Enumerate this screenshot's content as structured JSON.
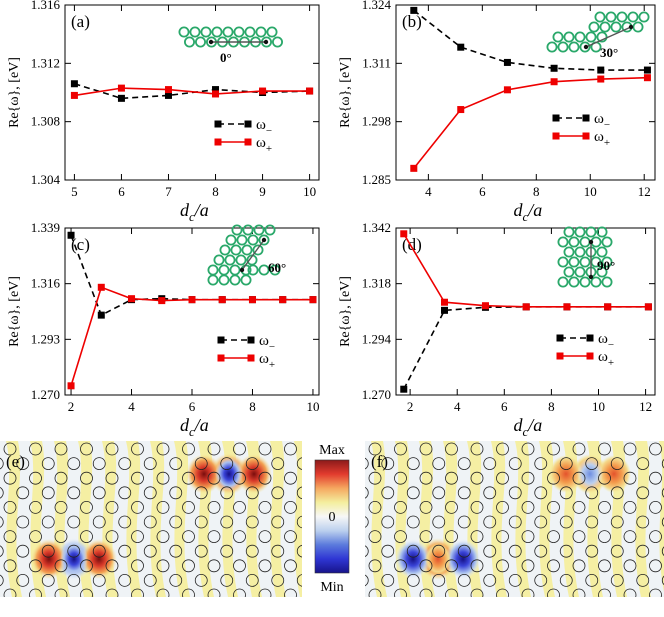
{
  "colors": {
    "minus": "#000000",
    "plus": "#ee0000",
    "ring": "#2aa86a",
    "field_yellow": "#f4ee9e",
    "field_light": "#eff3f6"
  },
  "legend": {
    "minus_symbol": "ω",
    "minus_sub": "−",
    "plus_symbol": "ω",
    "plus_sub": "+"
  },
  "chart_data": [
    {
      "id": "a",
      "panel_label": "(a)",
      "type": "line",
      "xlabel_main": "d",
      "xlabel_sub": "c",
      "xlabel_tail": "/a",
      "ylabel": "Re{ω}, [eV]",
      "xlim": [
        4.8,
        10.2
      ],
      "ylim": [
        1.304,
        1.316
      ],
      "xticks": [
        5,
        6,
        7,
        8,
        9,
        10
      ],
      "yticks": [
        1.304,
        1.308,
        1.312,
        1.316
      ],
      "y_precision": 3,
      "angle_label": "0°",
      "series": [
        {
          "name": "ω−",
          "style": "dashed-black",
          "x": [
            5,
            6,
            7,
            8,
            9,
            10
          ],
          "y": [
            1.3106,
            1.3096,
            1.3098,
            1.3102,
            1.31,
            1.3101
          ]
        },
        {
          "name": "ω+",
          "style": "solid-red",
          "x": [
            5,
            6,
            7,
            8,
            9,
            10
          ],
          "y": [
            1.3098,
            1.3103,
            1.3102,
            1.3099,
            1.3101,
            1.3101
          ]
        }
      ]
    },
    {
      "id": "b",
      "panel_label": "(b)",
      "type": "line",
      "xlabel_main": "d",
      "xlabel_sub": "c",
      "xlabel_tail": "/a",
      "ylabel": "Re{ω}, [eV]",
      "xlim": [
        2.8,
        12.4
      ],
      "ylim": [
        1.285,
        1.324
      ],
      "xticks": [
        4,
        6,
        8,
        10,
        12
      ],
      "yticks": [
        1.285,
        1.298,
        1.311,
        1.324
      ],
      "y_precision": 3,
      "angle_label": "30°",
      "series": [
        {
          "name": "ω−",
          "style": "dashed-black",
          "x": [
            3.46,
            5.2,
            6.93,
            8.66,
            10.39,
            12.12
          ],
          "y": [
            1.3228,
            1.3146,
            1.3112,
            1.3099,
            1.3095,
            1.3095
          ]
        },
        {
          "name": "ω+",
          "style": "solid-red",
          "x": [
            3.46,
            5.2,
            6.93,
            8.66,
            10.39,
            12.12
          ],
          "y": [
            1.2876,
            1.3007,
            1.3051,
            1.3069,
            1.3075,
            1.3078
          ]
        }
      ]
    },
    {
      "id": "c",
      "panel_label": "(c)",
      "type": "line",
      "xlabel_main": "d",
      "xlabel_sub": "c",
      "xlabel_tail": "/a",
      "ylabel": "Re{ω}, [eV]",
      "xlim": [
        1.8,
        10.2
      ],
      "ylim": [
        1.27,
        1.339
      ],
      "xticks": [
        2,
        4,
        6,
        8,
        10
      ],
      "yticks": [
        1.27,
        1.293,
        1.316,
        1.339
      ],
      "y_precision": 3,
      "angle_label": "60°",
      "series": [
        {
          "name": "ω−",
          "style": "dashed-black",
          "x": [
            2,
            3,
            4,
            5,
            6,
            7,
            8,
            9,
            10
          ],
          "y": [
            1.336,
            1.303,
            1.3094,
            1.3098,
            1.3094,
            1.3094,
            1.3094,
            1.3094,
            1.3094
          ]
        },
        {
          "name": "ω+",
          "style": "solid-red",
          "x": [
            2,
            3,
            4,
            5,
            6,
            7,
            8,
            9,
            10
          ],
          "y": [
            1.2738,
            1.3145,
            1.3098,
            1.309,
            1.3094,
            1.3094,
            1.3094,
            1.3094,
            1.3094
          ]
        }
      ]
    },
    {
      "id": "d",
      "panel_label": "(d)",
      "type": "line",
      "xlabel_main": "d",
      "xlabel_sub": "c",
      "xlabel_tail": "/a",
      "ylabel": "Re{ω}, [eV]",
      "xlim": [
        1.4,
        12.4
      ],
      "ylim": [
        1.27,
        1.342
      ],
      "xticks": [
        2,
        4,
        6,
        8,
        10,
        12
      ],
      "yticks": [
        1.27,
        1.294,
        1.318,
        1.342
      ],
      "y_precision": 3,
      "angle_label": "90°",
      "series": [
        {
          "name": "ω−",
          "style": "dashed-black",
          "x": [
            1.73,
            3.46,
            5.2,
            6.93,
            8.66,
            10.39,
            12.12
          ],
          "y": [
            1.2725,
            1.3065,
            1.3078,
            1.308,
            1.308,
            1.308,
            1.308
          ]
        },
        {
          "name": "ω+",
          "style": "solid-red",
          "x": [
            1.73,
            3.46,
            5.2,
            6.93,
            8.66,
            10.39,
            12.12
          ],
          "y": [
            1.3395,
            1.31,
            1.3085,
            1.308,
            1.308,
            1.308,
            1.308
          ]
        }
      ]
    }
  ],
  "field_maps": [
    {
      "id": "e",
      "panel_label": "(e)"
    },
    {
      "id": "f",
      "panel_label": "(f)"
    }
  ],
  "colorbar": {
    "max_label": "Max",
    "zero_label": "0",
    "min_label": "Min",
    "colors": [
      "#8b1a1a",
      "#e23b2e",
      "#f5a860",
      "#f4ee9e",
      "#f7f7f7",
      "#bcd0ee",
      "#5b7bdc",
      "#2f36d4",
      "#17138a"
    ]
  }
}
